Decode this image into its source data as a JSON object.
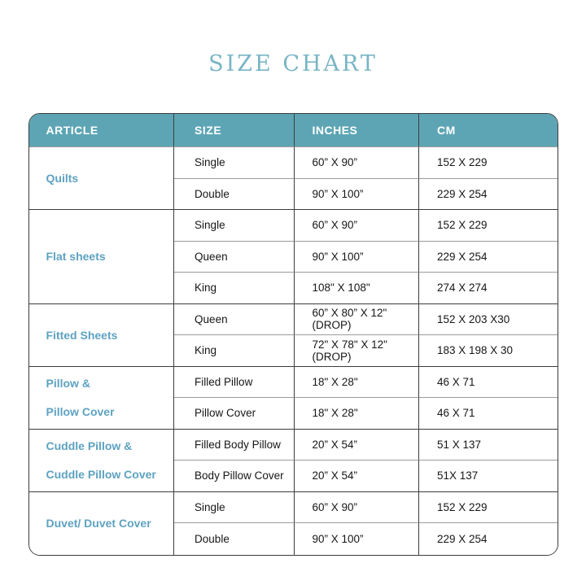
{
  "page": {
    "title": "SIZE CHART"
  },
  "colors": {
    "header_background": "#5da5b4",
    "header_text": "#ffffff",
    "article_text": "#5ea2c1",
    "title_text": "#79b5c5",
    "cell_text": "#161616",
    "strong_border": "#3c3c3c",
    "light_divider": "#9b9b9b"
  },
  "table": {
    "headers": [
      "ARTICLE",
      "SIZE",
      "INCHES",
      "CM"
    ],
    "groups": [
      {
        "article_lines": [
          "Quilts"
        ],
        "rows": [
          {
            "size": "Single",
            "inches": "60” X 90”",
            "cm": "152 X 229"
          },
          {
            "size": "Double",
            "inches": "90” X 100”",
            "cm": "229 X 254"
          }
        ]
      },
      {
        "article_lines": [
          "Flat sheets"
        ],
        "rows": [
          {
            "size": "Single",
            "inches": "60” X 90”",
            "cm": "152 X 229"
          },
          {
            "size": "Queen",
            "inches": "90” X 100”",
            "cm": "229 X 254"
          },
          {
            "size": "King",
            "inches": "108\" X 108\"",
            "cm": "274 X 274"
          }
        ]
      },
      {
        "article_lines": [
          "Fitted Sheets"
        ],
        "rows": [
          {
            "size": "Queen",
            "inches": "60” X 80” X 12\"(DROP)",
            "cm": "152 X 203 X30"
          },
          {
            "size": "King",
            "inches": "72\" X 78\" X 12\"(DROP)",
            "cm": "183 X 198 X 30"
          }
        ]
      },
      {
        "article_lines": [
          "Pillow &",
          "Pillow Cover"
        ],
        "rows": [
          {
            "size": "Filled Pillow",
            "inches": "18\" X 28\"",
            "cm": "46 X 71"
          },
          {
            "size": "Pillow Cover",
            "inches": "18\" X 28\"",
            "cm": "46 X 71"
          }
        ]
      },
      {
        "article_lines": [
          "Cuddle Pillow &",
          "Cuddle Pillow Cover"
        ],
        "rows": [
          {
            "size": "Filled Body Pillow",
            "inches": "20” X 54”",
            "cm": "51 X 137"
          },
          {
            "size": "Body Pillow Cover",
            "inches": "20” X 54”",
            "cm": "51X 137"
          }
        ]
      },
      {
        "article_lines": [
          "Duvet/ Duvet Cover"
        ],
        "rows": [
          {
            "size": "Single",
            "inches": "60” X 90”",
            "cm": "152 X 229"
          },
          {
            "size": "Double",
            "inches": "90” X 100”",
            "cm": "229 X 254"
          }
        ]
      }
    ]
  }
}
